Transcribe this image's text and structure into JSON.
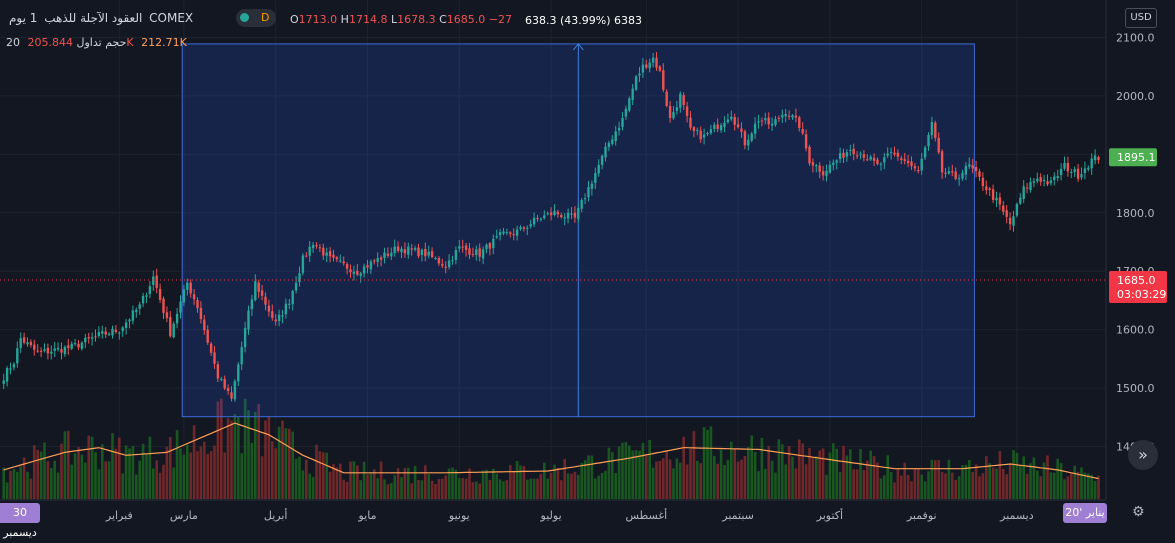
{
  "header": {
    "exchange": "COMEX",
    "symbol": "العقود الآجلة للذهب",
    "interval": "1 يوم",
    "mode_letter": "D",
    "ohlc": {
      "open_label": "O",
      "open": "1713.0",
      "high_label": "H",
      "high": "1714.8",
      "low_label": "L",
      "low": "1678.3",
      "close_label": "C",
      "close": "1685.0",
      "change": "−27"
    },
    "volume_line": {
      "label": "20 حجم تداول",
      "v1": "205.844K",
      "v2": "212.71K"
    }
  },
  "measure": {
    "text": "638.3 (43.99%) 6383"
  },
  "axis": {
    "currency": "USD"
  },
  "tags": {
    "last_price": "1895.1",
    "current_price": "1685.0",
    "countdown": "03:03:29"
  },
  "badges": {
    "left": "30 ديسمبر",
    "right": "20' يناير"
  },
  "colors": {
    "up": "#26a69a",
    "down": "#ef5350",
    "bg": "#131722",
    "ma": "#ff9f55",
    "range": "#2962ff",
    "tag_green": "#4caf50",
    "tag_red": "#f23645",
    "badge": "#9f7fd3"
  },
  "icons": {
    "scroll": "double-chevron-right-icon",
    "settings": "gear-icon"
  },
  "chart_data": {
    "type": "candlestick",
    "title": "العقود الآجلة للذهب · 1 يوم · COMEX",
    "price_ticks": [
      1400,
      1500,
      1600,
      1700,
      1800,
      1900,
      2000,
      2100
    ],
    "price_tick_labels": [
      "1400.0",
      "1500.0",
      "1600.0",
      "1700.0",
      "1800.0",
      "1900.0",
      "2000.0",
      "2100.0"
    ],
    "ylim": [
      1310,
      2155
    ],
    "months": [
      "فبراير",
      "مارس",
      "أبريل",
      "مايو",
      "يونيو",
      "يوليو",
      "أغسطس",
      "سبتمبر",
      "أكتوبر",
      "نوفمبر",
      "ديسمبر"
    ],
    "range_box": {
      "high": 2089,
      "low": 1451,
      "change": 638.3,
      "percent": 43.99,
      "bars": 6383
    },
    "close_anchors": [
      [
        0,
        1520
      ],
      [
        3,
        1545
      ],
      [
        5,
        1585
      ],
      [
        10,
        1560
      ],
      [
        20,
        1570
      ],
      [
        28,
        1590
      ],
      [
        34,
        1600
      ],
      [
        40,
        1640
      ],
      [
        44,
        1690
      ],
      [
        49,
        1595
      ],
      [
        54,
        1680
      ],
      [
        57,
        1640
      ],
      [
        63,
        1520
      ],
      [
        67,
        1480
      ],
      [
        71,
        1600
      ],
      [
        74,
        1680
      ],
      [
        80,
        1610
      ],
      [
        84,
        1650
      ],
      [
        88,
        1720
      ],
      [
        91,
        1750
      ],
      [
        96,
        1720
      ],
      [
        104,
        1700
      ],
      [
        110,
        1720
      ],
      [
        116,
        1740
      ],
      [
        124,
        1730
      ],
      [
        130,
        1710
      ],
      [
        134,
        1740
      ],
      [
        140,
        1730
      ],
      [
        146,
        1760
      ],
      [
        152,
        1770
      ],
      [
        157,
        1790
      ],
      [
        162,
        1800
      ],
      [
        168,
        1790
      ],
      [
        173,
        1855
      ],
      [
        178,
        1920
      ],
      [
        182,
        1960
      ],
      [
        186,
        2030
      ],
      [
        188,
        2050
      ],
      [
        191,
        2065
      ],
      [
        193,
        2040
      ],
      [
        196,
        1960
      ],
      [
        199,
        2000
      ],
      [
        202,
        1940
      ],
      [
        206,
        1930
      ],
      [
        210,
        1950
      ],
      [
        214,
        1970
      ],
      [
        218,
        1920
      ],
      [
        222,
        1960
      ],
      [
        226,
        1950
      ],
      [
        230,
        1975
      ],
      [
        234,
        1950
      ],
      [
        237,
        1890
      ],
      [
        241,
        1870
      ],
      [
        245,
        1890
      ],
      [
        249,
        1910
      ],
      [
        253,
        1900
      ],
      [
        257,
        1880
      ],
      [
        261,
        1900
      ],
      [
        265,
        1890
      ],
      [
        269,
        1870
      ],
      [
        273,
        1950
      ],
      [
        276,
        1870
      ],
      [
        280,
        1860
      ],
      [
        284,
        1880
      ],
      [
        288,
        1850
      ],
      [
        292,
        1820
      ],
      [
        296,
        1780
      ],
      [
        300,
        1840
      ],
      [
        304,
        1860
      ],
      [
        308,
        1850
      ],
      [
        312,
        1880
      ],
      [
        316,
        1865
      ],
      [
        320,
        1890
      ],
      [
        322,
        1895
      ]
    ],
    "volume_ma_anchors": [
      [
        0,
        1360
      ],
      [
        18,
        1390
      ],
      [
        28,
        1398
      ],
      [
        36,
        1385
      ],
      [
        48,
        1390
      ],
      [
        60,
        1420
      ],
      [
        68,
        1440
      ],
      [
        78,
        1420
      ],
      [
        88,
        1385
      ],
      [
        100,
        1355
      ],
      [
        130,
        1355
      ],
      [
        160,
        1358
      ],
      [
        184,
        1380
      ],
      [
        200,
        1398
      ],
      [
        222,
        1395
      ],
      [
        240,
        1380
      ],
      [
        262,
        1362
      ],
      [
        282,
        1362
      ],
      [
        296,
        1370
      ],
      [
        310,
        1360
      ],
      [
        322,
        1345
      ]
    ],
    "volume_axis_floor": 1310
  }
}
